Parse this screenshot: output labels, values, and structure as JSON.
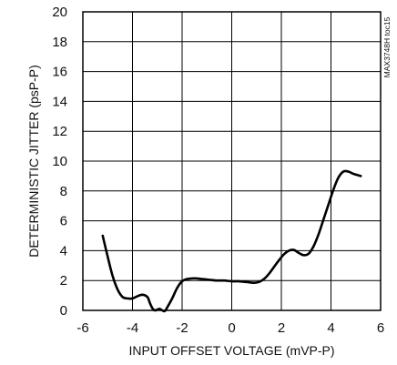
{
  "chart_data": {
    "type": "line",
    "xlabel": "INPUT OFFSET VOLTAGE (mVP-P)",
    "ylabel": "DETERMINISTIC JITTER (psP-P)",
    "xlim": [
      -6,
      6
    ],
    "ylim": [
      0,
      20
    ],
    "x_ticks": [
      -6,
      -4,
      -2,
      0,
      2,
      4,
      6
    ],
    "y_ticks": [
      0,
      2,
      4,
      6,
      8,
      10,
      12,
      14,
      16,
      18,
      20
    ],
    "grid": true,
    "side_note": "MAX3748H toc15",
    "series": [
      {
        "x": [
          -5.2,
          -5.0,
          -4.8,
          -4.6,
          -4.4,
          -4.2,
          -4.0,
          -3.8,
          -3.6,
          -3.4,
          -3.3,
          -3.2,
          -3.1,
          -3.0,
          -2.9,
          -2.8,
          -2.7,
          -2.6,
          -2.4,
          -2.2,
          -2.0,
          -1.8,
          -1.5,
          -1.2,
          -0.9,
          -0.6,
          -0.3,
          0.0,
          0.3,
          0.6,
          0.9,
          1.1,
          1.3,
          1.5,
          1.7,
          1.9,
          2.1,
          2.3,
          2.5,
          2.7,
          2.9,
          3.1,
          3.3,
          3.5,
          3.7,
          3.9,
          4.1,
          4.3,
          4.5,
          4.7,
          4.9,
          5.1,
          5.2
        ],
        "y": [
          5.0,
          3.6,
          2.3,
          1.4,
          0.9,
          0.8,
          0.8,
          0.95,
          1.05,
          0.9,
          0.5,
          0.15,
          0.0,
          0.05,
          0.1,
          0.0,
          -0.05,
          0.2,
          0.8,
          1.5,
          1.95,
          2.1,
          2.15,
          2.1,
          2.05,
          2.0,
          2.0,
          1.95,
          1.95,
          1.9,
          1.85,
          1.9,
          2.1,
          2.45,
          2.9,
          3.35,
          3.75,
          4.0,
          4.05,
          3.85,
          3.7,
          3.8,
          4.3,
          5.1,
          6.1,
          7.1,
          8.1,
          8.9,
          9.3,
          9.3,
          9.15,
          9.05,
          9.0
        ]
      }
    ]
  }
}
